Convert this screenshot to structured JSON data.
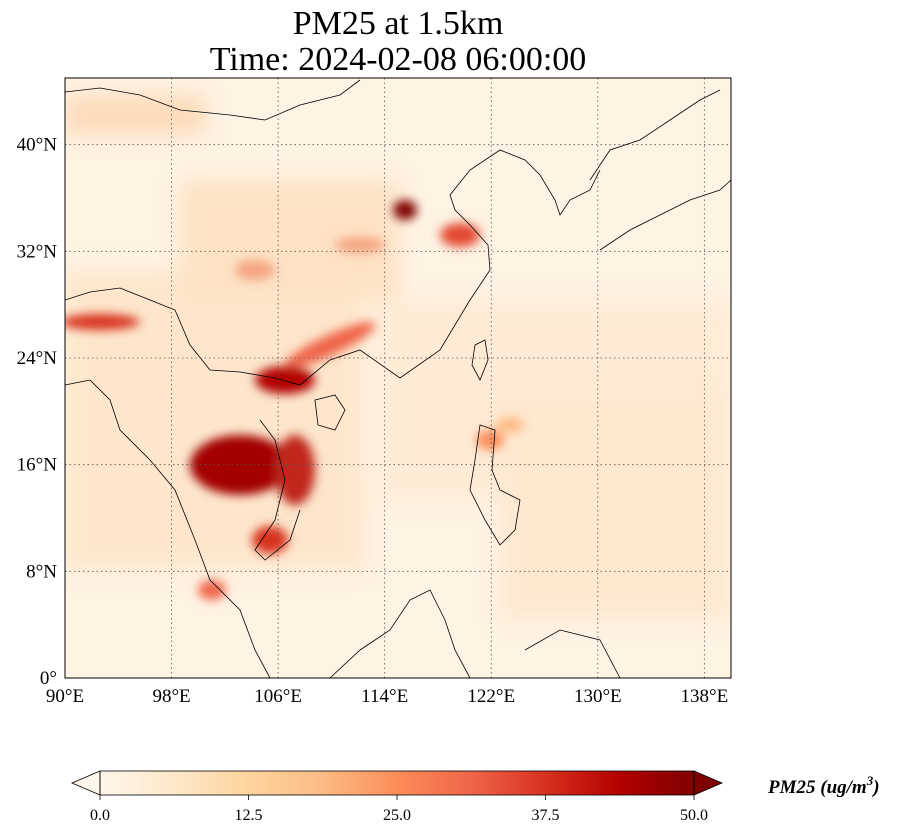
{
  "title": {
    "line1": "PM25 at 1.5km",
    "line2": "Time: 2024-02-08 06:00:00"
  },
  "map": {
    "lon_range": [
      90,
      140
    ],
    "lat_range": [
      0,
      45
    ],
    "lon_ticks": [
      "90°E",
      "98°E",
      "106°E",
      "114°E",
      "122°E",
      "130°E",
      "138°E"
    ],
    "lat_ticks": [
      "0°",
      "8°N",
      "16°N",
      "24°N",
      "32°N",
      "40°N"
    ],
    "gridlines": "dotted",
    "colormap": "OrRd",
    "hotspots": [
      {
        "region": "North China Plain",
        "lon": 117,
        "lat": 35.5,
        "level": "very high"
      },
      {
        "region": "Yangtze River Delta",
        "lon": 121,
        "lat": 32.5,
        "level": "high"
      },
      {
        "region": "Sichuan Basin",
        "lon": 105,
        "lat": 30,
        "level": "moderate"
      },
      {
        "region": "Myanmar north",
        "lon": 94,
        "lat": 27,
        "level": "high"
      },
      {
        "region": "Guangxi / Guangdong",
        "lon": 108,
        "lat": 23,
        "level": "very high"
      },
      {
        "region": "Laos / Thailand",
        "lon": 102,
        "lat": 16,
        "level": "very high"
      },
      {
        "region": "Vietnam central",
        "lon": 107,
        "lat": 15,
        "level": "high"
      },
      {
        "region": "Malay Peninsula",
        "lon": 100.5,
        "lat": 6.5,
        "level": "high"
      },
      {
        "region": "Luzon",
        "lon": 120.5,
        "lat": 17,
        "level": "moderate"
      }
    ]
  },
  "colorbar": {
    "min": 0.0,
    "max": 50.0,
    "extend": "both",
    "ticks": [
      "0.0",
      "12.5",
      "25.0",
      "37.5",
      "50.0"
    ],
    "label": "PM25 (ug/m",
    "label_superscript": "3",
    "label_close": ")",
    "colors": [
      "#fff7ec",
      "#fee8c8",
      "#fdd49e",
      "#fdbb84",
      "#fc8d59",
      "#ef6548",
      "#d7301f",
      "#b30000",
      "#7f0000"
    ]
  }
}
